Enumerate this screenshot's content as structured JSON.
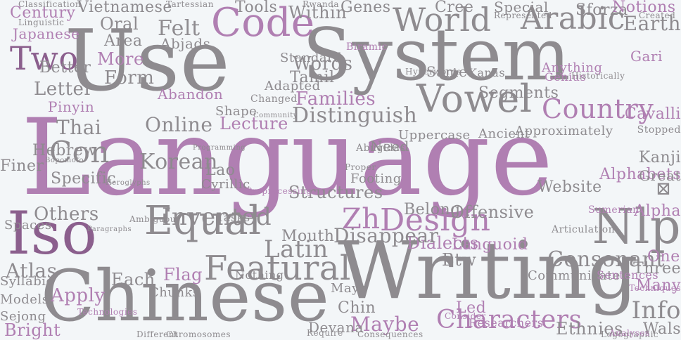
{
  "palette": {
    "gray": "#8e8b8f",
    "purple": "#b07fb2",
    "dark_purple": "#8b5f8d",
    "light_gray": "#b3b0b4",
    "background": "#f3f6f8"
  },
  "words": [
    {
      "text": "Language",
      "color": "purple"
    },
    {
      "text": "Use",
      "color": "gray"
    },
    {
      "text": "System",
      "color": "gray"
    },
    {
      "text": "Writing",
      "color": "gray"
    },
    {
      "text": "Chinese",
      "color": "gray"
    },
    {
      "text": "Iso",
      "color": "dark_purple"
    },
    {
      "text": "Code",
      "color": "purple"
    },
    {
      "text": "World",
      "color": "gray"
    },
    {
      "text": "Arabic",
      "color": "gray"
    },
    {
      "text": "Vowel",
      "color": "gray"
    },
    {
      "text": "Equal",
      "color": "gray"
    },
    {
      "text": "Nlp",
      "color": "gray"
    },
    {
      "text": "Featural",
      "color": "gray"
    },
    {
      "text": "Design",
      "color": "purple"
    },
    {
      "text": "Zh",
      "color": "purple"
    },
    {
      "text": "Characters",
      "color": "purple"
    },
    {
      "text": "Country",
      "color": "purple"
    },
    {
      "text": "Two",
      "color": "dark_purple"
    },
    {
      "text": "Earth",
      "color": "gray"
    },
    {
      "text": "Con",
      "color": "gray"
    },
    {
      "text": "Distinguish",
      "color": "gray"
    },
    {
      "text": "Families",
      "color": "purple"
    },
    {
      "text": "Invented",
      "color": "gray"
    },
    {
      "text": "Korean",
      "color": "gray"
    },
    {
      "text": "Latin",
      "color": "gray"
    },
    {
      "text": "Consonant",
      "color": "gray"
    },
    {
      "text": "Info",
      "color": "gray"
    },
    {
      "text": "Sforza",
      "color": "gray"
    },
    {
      "text": "Vietnamese",
      "color": "gray"
    },
    {
      "text": "Century",
      "color": "purple"
    },
    {
      "text": "Japanese",
      "color": "purple"
    },
    {
      "text": "Apply",
      "color": "purple"
    },
    {
      "text": "Bright",
      "color": "purple"
    },
    {
      "text": "Maybe",
      "color": "purple"
    },
    {
      "text": "Letter",
      "color": "gray"
    },
    {
      "text": "Form",
      "color": "gray"
    },
    {
      "text": "More",
      "color": "purple"
    },
    {
      "text": "Thai",
      "color": "gray"
    },
    {
      "text": "Area",
      "color": "gray"
    },
    {
      "text": "Felt",
      "color": "gray"
    },
    {
      "text": "Oral",
      "color": "gray"
    },
    {
      "text": "Words",
      "color": "gray"
    },
    {
      "text": "Tamil",
      "color": "gray"
    },
    {
      "text": "Within",
      "color": "gray"
    },
    {
      "text": "Genes",
      "color": "gray"
    },
    {
      "text": "Cree",
      "color": "gray"
    },
    {
      "text": "Special",
      "color": "gray"
    },
    {
      "text": "Notions",
      "color": "purple"
    },
    {
      "text": "Tools",
      "color": "gray"
    },
    {
      "text": "Abjads",
      "color": "gray"
    },
    {
      "text": "Better",
      "color": "gray"
    },
    {
      "text": "Hebrew",
      "color": "gray"
    },
    {
      "text": "Specific",
      "color": "gray"
    },
    {
      "text": "Others",
      "color": "gray"
    },
    {
      "text": "Atlas",
      "color": "gray"
    },
    {
      "text": "Each",
      "color": "gray"
    },
    {
      "text": "Flag",
      "color": "purple"
    },
    {
      "text": "Lecture",
      "color": "purple"
    },
    {
      "text": "Online",
      "color": "gray"
    },
    {
      "text": "Lao",
      "color": "gray"
    },
    {
      "text": "Structures",
      "color": "gray"
    },
    {
      "text": "Mouth",
      "color": "gray"
    },
    {
      "text": "Dialects",
      "color": "purple"
    },
    {
      "text": "Disappear",
      "color": "gray"
    },
    {
      "text": "Offensive",
      "color": "gray"
    },
    {
      "text": "Belong",
      "color": "gray"
    },
    {
      "text": "Languoid",
      "color": "purple"
    },
    {
      "text": "Alphabets",
      "color": "purple"
    },
    {
      "text": "Alpha",
      "color": "purple"
    },
    {
      "text": "Kanji",
      "color": "gray"
    },
    {
      "text": "Great",
      "color": "gray"
    },
    {
      "text": "Website",
      "color": "gray"
    },
    {
      "text": "Btw",
      "color": "gray"
    },
    {
      "text": "Three",
      "color": "gray"
    },
    {
      "text": "Many",
      "color": "purple"
    },
    {
      "text": "One",
      "color": "purple"
    },
    {
      "text": "Wals",
      "color": "gray"
    },
    {
      "text": "Ethnies",
      "color": "gray"
    },
    {
      "text": "Cavalli",
      "color": "purple"
    },
    {
      "text": "Gari",
      "color": "purple"
    },
    {
      "text": "Segments",
      "color": "gray"
    },
    {
      "text": "Kanas",
      "color": "gray"
    },
    {
      "text": "Same",
      "color": "gray"
    },
    {
      "text": "Anything",
      "color": "purple"
    },
    {
      "text": "Pinyin",
      "color": "purple"
    },
    {
      "text": "Genius",
      "color": "purple"
    },
    {
      "text": "Led",
      "color": "purple"
    },
    {
      "text": "Need",
      "color": "gray"
    },
    {
      "text": "Uppercase",
      "color": "gray"
    },
    {
      "text": "Ancient",
      "color": "gray"
    },
    {
      "text": "Shape",
      "color": "gray"
    },
    {
      "text": "Adapted",
      "color": "gray"
    },
    {
      "text": "Standard",
      "color": "gray"
    },
    {
      "text": "Abugidas",
      "color": "gray"
    },
    {
      "text": "Chin",
      "color": "gray"
    },
    {
      "text": "Devana",
      "color": "gray"
    },
    {
      "text": "Finer",
      "color": "gray"
    },
    {
      "text": "Spaces",
      "color": "gray"
    },
    {
      "text": "Syllabic",
      "color": "gray"
    },
    {
      "text": "Models",
      "color": "gray"
    },
    {
      "text": "Sejong",
      "color": "gray"
    },
    {
      "text": "Tasks",
      "color": "gray"
    },
    {
      "text": "Cyrillic",
      "color": "gray"
    },
    {
      "text": "Nothing",
      "color": "gray"
    },
    {
      "text": "Abandon",
      "color": "purple"
    },
    {
      "text": "Maya",
      "color": "gray"
    },
    {
      "text": "Approximately",
      "color": "gray"
    },
    {
      "text": "Communicate",
      "color": "gray"
    },
    {
      "text": "Chunks",
      "color": "gray"
    },
    {
      "text": "Footing",
      "color": "gray"
    },
    {
      "text": "Historically",
      "color": "gray"
    },
    {
      "text": "Require",
      "color": "gray"
    },
    {
      "text": "Different",
      "color": "gray"
    },
    {
      "text": "Chromosomes",
      "color": "gray"
    },
    {
      "text": "Logographic",
      "color": "gray"
    },
    {
      "text": "Researchers",
      "color": "purple"
    },
    {
      "text": "Technologies",
      "color": "purple"
    },
    {
      "text": "Linguistic",
      "color": "gray"
    },
    {
      "text": "Classification",
      "color": "gray"
    },
    {
      "text": "Paragraphs",
      "color": "gray"
    },
    {
      "text": "Ambiguous",
      "color": "gray"
    },
    {
      "text": "Biramic",
      "color": "purple"
    },
    {
      "text": "Heroglyphs",
      "color": "gray"
    },
    {
      "text": "Changed",
      "color": "gray"
    },
    {
      "text": "Sumerian",
      "color": "purple"
    },
    {
      "text": "Articulation",
      "color": "gray"
    },
    {
      "text": "Consider",
      "color": "purple"
    },
    {
      "text": "Techniques",
      "color": "purple"
    },
    {
      "text": "Sentences",
      "color": "purple"
    },
    {
      "text": "Proper",
      "color": "gray"
    },
    {
      "text": "Bopomofo",
      "color": "gray"
    },
    {
      "text": "Hyperwords",
      "color": "gray"
    },
    {
      "text": "Created",
      "color": "gray"
    },
    {
      "text": "Consequences",
      "color": "gray"
    },
    {
      "text": "Represented",
      "color": "gray"
    },
    {
      "text": "Programming",
      "color": "gray"
    },
    {
      "text": "Analyses",
      "color": "purple"
    },
    {
      "text": "Stopped",
      "color": "gray"
    },
    {
      "text": "Preprocessing",
      "color": "purple"
    },
    {
      "text": "Community",
      "color": "gray"
    },
    {
      "text": "Tartessian",
      "color": "gray"
    },
    {
      "text": "Rwanda",
      "color": "gray"
    },
    {
      "text": "⊠",
      "color": "gray"
    }
  ]
}
